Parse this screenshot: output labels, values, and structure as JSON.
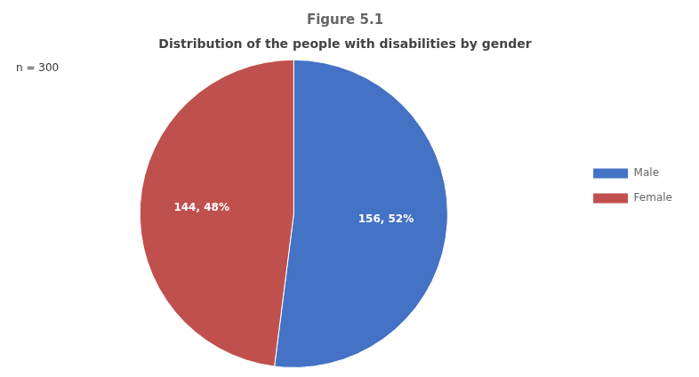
{
  "chart_data": {
    "type": "pie",
    "title": "Figure 5.1",
    "subtitle": "Distribution of the people with disabilities by gender",
    "annotations": [
      "n = 300"
    ],
    "categories": [
      "Male",
      "Female"
    ],
    "values": [
      156,
      144
    ],
    "value_labels": [
      "156, 52%",
      "144, 48%"
    ],
    "colors": [
      "#4472C4",
      "#C0504D"
    ],
    "data_labels": true,
    "legend": "right"
  }
}
